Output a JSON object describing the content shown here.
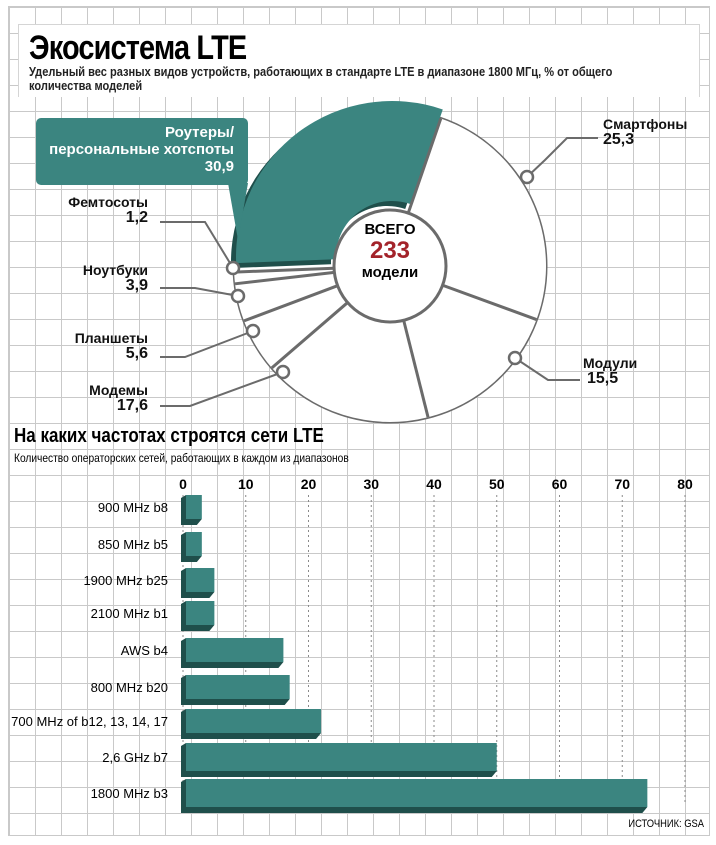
{
  "header": {
    "title": "Экосистема LTE",
    "subtitle": "Удельный вес разных видов устройств, работающих в стандарте LTE в диапазоне 1800 МГц, % от общего количества моделей"
  },
  "colors": {
    "teal": "#3b8580",
    "teal_dark": "#1f4f4b",
    "accent_red": "#a3232a",
    "line": "#6b6b6b",
    "grid": "#c9c9c9"
  },
  "chart_data": [
    {
      "type": "pie",
      "style": "donut, exploded slice",
      "total_label": "ВСЕГО",
      "total_value": "233",
      "total_unit": "модели",
      "slices": [
        {
          "name": "Смартфоны",
          "value": 25.3,
          "value_label": "25,3"
        },
        {
          "name": "Модули",
          "value": 15.5,
          "value_label": "15,5"
        },
        {
          "name": "Модемы",
          "value": 17.6,
          "value_label": "17,6"
        },
        {
          "name": "Планшеты",
          "value": 5.6,
          "value_label": "5,6"
        },
        {
          "name": "Ноутбуки",
          "value": 3.9,
          "value_label": "3,9"
        },
        {
          "name": "Фемтосоты",
          "value": 1.2,
          "value_label": "1,2"
        },
        {
          "name": "Роутеры/ персональные хотспоты",
          "name_line1": "Роутеры/",
          "name_line2": "персональные хотспоты",
          "value": 30.9,
          "value_label": "30,9",
          "highlighted": true
        }
      ]
    },
    {
      "type": "bar",
      "orientation": "horizontal",
      "title": "На каких частотах строятся сети LTE",
      "subtitle": "Количество операторских сетей, работающих в каждом из диапазонов",
      "categories": [
        "900 MHz b8",
        "850 MHz b5",
        "1900 MHz b25",
        "2100 MHz b1",
        "AWS b4",
        "800 MHz b20",
        "700 MHz of b12, 13, 14, 17",
        "2,6 GHz b7",
        "1800 MHz b3"
      ],
      "values": [
        3,
        3,
        5,
        5,
        16,
        17,
        22,
        50,
        74
      ],
      "xlim": [
        0,
        80
      ],
      "xticks": [
        "0",
        "10",
        "20",
        "30",
        "40",
        "50",
        "60",
        "70",
        "80"
      ],
      "axis_position": "top",
      "grid": "dotted vertical"
    }
  ],
  "source": "ИСТОЧНИК: GSA"
}
